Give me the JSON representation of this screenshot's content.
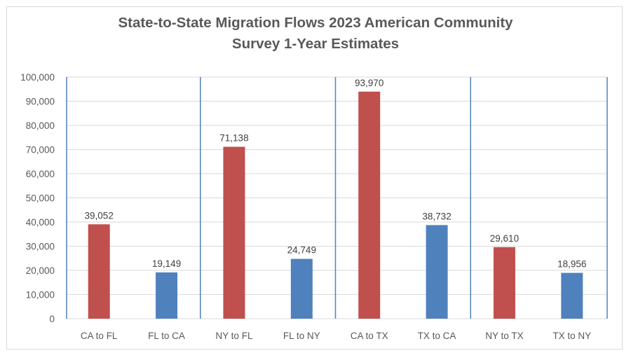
{
  "chart_data": {
    "type": "bar",
    "title": "State-to-State Migration Flows 2023 American Community Survey 1-Year Estimates",
    "title_lines": [
      "State-to-State Migration Flows 2023 American Community",
      "Survey 1-Year Estimates"
    ],
    "xlabel": "",
    "ylabel": "",
    "ylim": [
      0,
      100000
    ],
    "y_ticks": [
      0,
      10000,
      20000,
      30000,
      40000,
      50000,
      60000,
      70000,
      80000,
      90000,
      100000
    ],
    "y_tick_labels": [
      "0",
      "10,000",
      "20,000",
      "30,000",
      "40,000",
      "50,000",
      "60,000",
      "70,000",
      "80,000",
      "90,000",
      "100,000"
    ],
    "grid": true,
    "legend": "none",
    "categories": [
      "CA to FL",
      "FL to CA",
      "NY to FL",
      "FL to NY",
      "CA to TX",
      "TX to CA",
      "NY to TX",
      "TX to NY"
    ],
    "values": [
      39052,
      19149,
      71138,
      24749,
      93970,
      38732,
      29610,
      18956
    ],
    "data_labels": [
      "39,052",
      "19,149",
      "71,138",
      "24,749",
      "93,970",
      "38,732",
      "29,610",
      "18,956"
    ],
    "bar_colors": [
      "#C0504D",
      "#4F81BD",
      "#C0504D",
      "#4F81BD",
      "#C0504D",
      "#4F81BD",
      "#C0504D",
      "#4F81BD"
    ],
    "group_separators_after": [
      "FL to CA",
      "FL to NY",
      "TX to CA"
    ],
    "colors": {
      "outbound": "#C0504D",
      "inbound": "#4F81BD",
      "separator": "#4F81BD",
      "gridline": "#D9D9D9",
      "text": "#595959"
    }
  }
}
